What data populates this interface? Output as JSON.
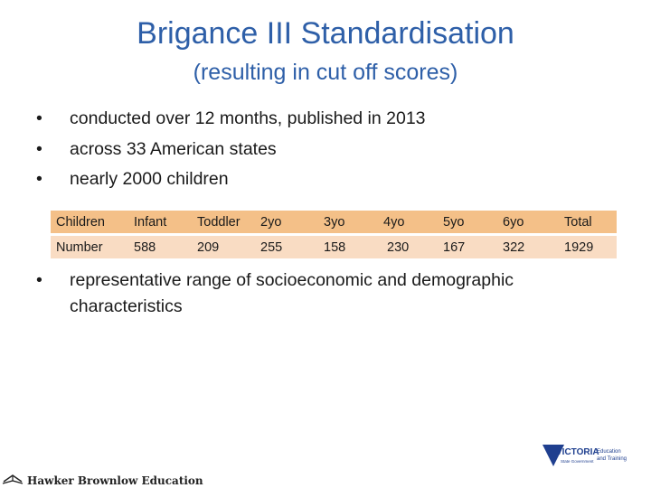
{
  "slide": {
    "title": "Brigance III Standardisation",
    "subtitle": "(resulting in cut off scores)",
    "bullets": [
      "conducted over 12 months, published in 2013",
      "across 33 American states",
      "nearly 2000 children"
    ],
    "bullet_symbol": "•",
    "table": {
      "header": [
        "Children",
        "Infant",
        "Toddler",
        "2yo",
        "3yo",
        "4yo",
        "5yo",
        "6yo",
        "Total"
      ],
      "row": [
        "Number",
        "588",
        "209",
        "255",
        "158",
        " 230",
        "167",
        "322",
        "1929"
      ]
    },
    "bullet_after_table": "representative range of socioeconomic and demographic characteristics"
  },
  "footer": {
    "publisher": "Hawker Brownlow Education",
    "publisher_icon": "book-icon",
    "victoria_logo": {
      "name": "VICTORIA",
      "sub": "State Government",
      "dept_line1": "Education",
      "dept_line2": "and Training"
    }
  },
  "colors": {
    "title": "#2e5fa8",
    "table_header_bg": "#f4c088",
    "table_row_bg": "#f9dcc3",
    "logo_blue": "#1f3f8f"
  }
}
